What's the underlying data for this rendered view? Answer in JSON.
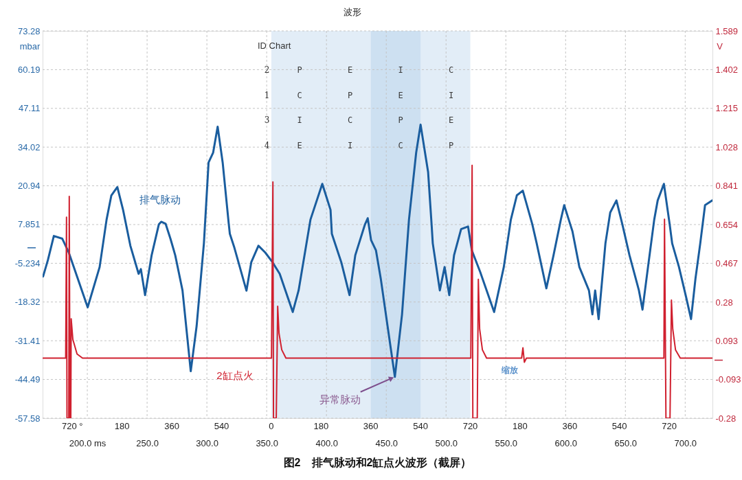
{
  "chart_data": {
    "type": "line",
    "title": "图2　排气脉动和2缸点火波形（截屏）",
    "ylabel": "mbar",
    "y2label": "V",
    "annotations": [
      "波形",
      "缩放",
      "ID Chart",
      "2",
      "P",
      "E",
      "I",
      "C",
      "1",
      "C",
      "P",
      "E",
      "I",
      "3",
      "I",
      "C",
      "P",
      "E",
      "4",
      "E",
      "I",
      "C",
      "P",
      "720 °",
      "180",
      "360",
      "540",
      "0",
      "180",
      "360",
      "540",
      "720",
      "180",
      "360",
      "540",
      "720",
      {
        "text": "异常脉动",
        "x": 457.2,
        "y": -43.6
      }
    ],
    "xlim": [
      162.6,
      722.8
    ],
    "xticks": [
      {
        "value": 200,
        "label": "200.0 ms"
      },
      {
        "value": 250,
        "label": "250.0"
      },
      {
        "value": 300,
        "label": "300.0"
      },
      {
        "value": 350,
        "label": "350.0"
      },
      {
        "value": 400,
        "label": "400.0"
      },
      {
        "value": 450,
        "label": "450.0"
      },
      {
        "value": 500,
        "label": "500.0"
      },
      {
        "value": 550,
        "label": "550.0"
      },
      {
        "value": 600,
        "label": "600.0"
      },
      {
        "value": 650,
        "label": "650.0"
      },
      {
        "value": 700,
        "label": "700.0"
      }
    ],
    "ylim": [
      -57.58,
      73.28
    ],
    "yticks": [
      73.28,
      60.19,
      47.11,
      34.02,
      20.94,
      7.851,
      {
        "value": 0,
        "label": null
      },
      -5.234,
      -18.32,
      -31.41,
      -44.49,
      -57.58
    ],
    "y2lim": [
      -0.28,
      1.589
    ],
    "y2ticks": [
      1.589,
      1.402,
      1.215,
      1.028,
      0.841,
      0.654,
      0.467,
      0.28,
      0.093,
      {
        "value": 0,
        "label": null
      },
      -0.093,
      -0.28
    ],
    "grid": true,
    "bands": [
      {
        "axis": "x",
        "from": 353.9,
        "to": 520.3,
        "color": "#e2edf7"
      },
      {
        "axis": "x",
        "from": 437.1,
        "to": 478.7,
        "color": "#cde0f1"
      }
    ],
    "series": [
      {
        "name": "排气脉动",
        "color": "#1a5d9e",
        "x": [
          163,
          167,
          172,
          179,
          184.5,
          200.3,
          210.3,
          216.1,
          220.1,
          225.1,
          229.9,
          236.0,
          242.9,
          244.8,
          248.3,
          253.8,
          259.8,
          261.8,
          265.5,
          269.5,
          273.5,
          279.6,
          286.5,
          291.4,
          297.5,
          301.4,
          305.2,
          309.0,
          313.2,
          318.3,
          319.2,
          323.0,
          333.1,
          337.1,
          343.1,
          348.8,
          354.9,
          360.9,
          371.8,
          376.7,
          386.6,
          396.5,
          403.4,
          404.5,
          412.4,
          419.3,
          424.1,
          432.2,
          434.5,
          437.3,
          441.4,
          445.4,
          451.1,
          457.2,
          463.2,
          469.0,
          475.0,
          478.7,
          485.0,
          487.9,
          488.9,
          494.8,
          498.8,
          502.7,
          506.7,
          512.6,
          518.4,
          521.6,
          528.5,
          540.2,
          548.3,
          554.2,
          559.2,
          564.2,
          572.1,
          575.8,
          583.9,
          589.9,
          596.0,
          598.8,
          603.8,
          605.7,
          611.5,
          619.5,
          622.4,
          624.7,
          627.6,
          633.3,
          637.3,
          642.5,
          647.4,
          653.4,
          661.3,
          664.3,
          668.9,
          674.1,
          677.0,
          682.2,
          687.0,
          689.1,
          694.8,
          700.9,
          704.9,
          708.6,
          712.6,
          716.6,
          722.7
        ],
        "values": [
          -9.7,
          -4.2,
          4.0,
          3.1,
          -1.6,
          -20.1,
          -6.5,
          9.5,
          17.7,
          20.5,
          12.8,
          0.7,
          -8.8,
          -7.2,
          -16.0,
          -2.5,
          7.9,
          8.8,
          8.1,
          3.1,
          -2.5,
          -14.4,
          -41.7,
          -26.5,
          1.5,
          28.8,
          32.1,
          40.9,
          28.8,
          8.0,
          4.7,
          0.0,
          -14.5,
          -4.9,
          0.7,
          -1.6,
          -4.9,
          -8.8,
          -21.7,
          -14.4,
          9.5,
          21.6,
          12.8,
          4.7,
          -4.9,
          -16.0,
          -2.5,
          7.9,
          10.0,
          2.6,
          -0.9,
          -10.4,
          -26.5,
          -43.6,
          -22.5,
          9.5,
          32.1,
          41.6,
          25.6,
          8.0,
          1.5,
          -14.4,
          -6.5,
          -16.0,
          -2.5,
          6.3,
          7.2,
          -0.9,
          -8.1,
          -21.7,
          -6.5,
          9.5,
          17.7,
          19.3,
          8.0,
          1.5,
          -13.7,
          -2.5,
          9.5,
          14.4,
          8.0,
          5.6,
          -6.5,
          -14.4,
          -22.5,
          -14.4,
          -24.1,
          1.5,
          11.9,
          16.0,
          8.0,
          -2.5,
          -14.4,
          -20.9,
          -6.5,
          9.5,
          16.0,
          21.6,
          8.0,
          1.5,
          -6.5,
          -16.9,
          -24.1,
          -10.4,
          1.5,
          14.4,
          16.0
        ]
      },
      {
        "name": "2缸点火",
        "color": "#d0202f",
        "axis": "y2",
        "x": [
          163,
          181.9,
          182.6,
          183.0,
          184.5,
          184.9,
          185.5,
          186.2,
          186.5,
          187.9,
          191.4,
          196.0,
          354.0,
          355.2,
          355.7,
          358.0,
          359.2,
          360.3,
          362.6,
          366.1,
          520.7,
          521.8,
          522.4,
          526.1,
          527.0,
          528.1,
          530.4,
          533.9,
          563.2,
          564.3,
          565.5,
          567.2,
          682.2,
          682.7,
          683.9,
          687.3,
          688.5,
          689.6,
          691.9,
          695.9,
          722.7
        ],
        "values": [
          0.01,
          0.01,
          0.69,
          -0.28,
          -0.28,
          0.79,
          -0.28,
          -0.28,
          0.2,
          0.1,
          0.03,
          0.01,
          0.01,
          0.86,
          -0.28,
          -0.28,
          0.26,
          0.13,
          0.05,
          0.01,
          0.01,
          0.94,
          -0.28,
          -0.28,
          0.39,
          0.15,
          0.05,
          0.01,
          0.01,
          0.06,
          -0.01,
          0.01,
          0.01,
          0.68,
          -0.28,
          -0.28,
          0.29,
          0.15,
          0.05,
          0.01,
          0.01
        ]
      }
    ]
  }
}
